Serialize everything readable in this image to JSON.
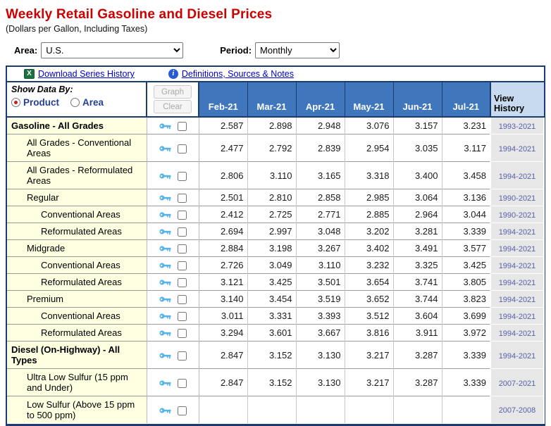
{
  "page": {
    "title": "Weekly Retail Gasoline and Diesel Prices",
    "subtitle": "(Dollars per Gallon, Including Taxes)"
  },
  "controls": {
    "area_label": "Area:",
    "area_value": "U.S.",
    "period_label": "Period:",
    "period_value": "Monthly"
  },
  "toolbar": {
    "download_label": "Download Series History",
    "definitions_label": "Definitions, Sources & Notes",
    "excel_icon_glyph": "X",
    "info_icon_glyph": "i"
  },
  "table": {
    "show_data_by": "Show Data By:",
    "radio_product_label": "Product",
    "radio_area_label": "Area",
    "graph_button_label": "Graph",
    "clear_button_label": "Clear",
    "columns": [
      "Feb-21",
      "Mar-21",
      "Apr-21",
      "May-21",
      "Jun-21",
      "Jul-21"
    ],
    "view_history_label": "View History",
    "rows": [
      {
        "label": "Gasoline - All Grades",
        "indent": 0,
        "bold": true,
        "values": [
          "2.587",
          "2.898",
          "2.948",
          "3.076",
          "3.157",
          "3.231"
        ],
        "history": "1993-2021"
      },
      {
        "label": "All Grades - Conventional Areas",
        "indent": 1,
        "bold": false,
        "values": [
          "2.477",
          "2.792",
          "2.839",
          "2.954",
          "3.035",
          "3.117"
        ],
        "history": "1994-2021"
      },
      {
        "label": "All Grades - Reformulated Areas",
        "indent": 1,
        "bold": false,
        "values": [
          "2.806",
          "3.110",
          "3.165",
          "3.318",
          "3.400",
          "3.458"
        ],
        "history": "1994-2021"
      },
      {
        "label": "Regular",
        "indent": 1,
        "bold": false,
        "values": [
          "2.501",
          "2.810",
          "2.858",
          "2.985",
          "3.064",
          "3.136"
        ],
        "history": "1990-2021"
      },
      {
        "label": "Conventional Areas",
        "indent": 2,
        "bold": false,
        "values": [
          "2.412",
          "2.725",
          "2.771",
          "2.885",
          "2.964",
          "3.044"
        ],
        "history": "1990-2021"
      },
      {
        "label": "Reformulated Areas",
        "indent": 2,
        "bold": false,
        "values": [
          "2.694",
          "2.997",
          "3.048",
          "3.202",
          "3.281",
          "3.339"
        ],
        "history": "1994-2021"
      },
      {
        "label": "Midgrade",
        "indent": 1,
        "bold": false,
        "values": [
          "2.884",
          "3.198",
          "3.267",
          "3.402",
          "3.491",
          "3.577"
        ],
        "history": "1994-2021"
      },
      {
        "label": "Conventional Areas",
        "indent": 2,
        "bold": false,
        "values": [
          "2.726",
          "3.049",
          "3.110",
          "3.232",
          "3.325",
          "3.425"
        ],
        "history": "1994-2021"
      },
      {
        "label": "Reformulated Areas",
        "indent": 2,
        "bold": false,
        "values": [
          "3.121",
          "3.425",
          "3.501",
          "3.654",
          "3.741",
          "3.805"
        ],
        "history": "1994-2021"
      },
      {
        "label": "Premium",
        "indent": 1,
        "bold": false,
        "values": [
          "3.140",
          "3.454",
          "3.519",
          "3.652",
          "3.744",
          "3.823"
        ],
        "history": "1994-2021"
      },
      {
        "label": "Conventional Areas",
        "indent": 2,
        "bold": false,
        "values": [
          "3.011",
          "3.331",
          "3.393",
          "3.512",
          "3.604",
          "3.699"
        ],
        "history": "1994-2021"
      },
      {
        "label": "Reformulated Areas",
        "indent": 2,
        "bold": false,
        "values": [
          "3.294",
          "3.601",
          "3.667",
          "3.816",
          "3.911",
          "3.972"
        ],
        "history": "1994-2021"
      },
      {
        "label": "Diesel (On-Highway) - All Types",
        "indent": 0,
        "bold": true,
        "values": [
          "2.847",
          "3.152",
          "3.130",
          "3.217",
          "3.287",
          "3.339"
        ],
        "history": "1994-2021"
      },
      {
        "label": "Ultra Low Sulfur (15 ppm and Under)",
        "indent": 1,
        "bold": false,
        "values": [
          "2.847",
          "3.152",
          "3.130",
          "3.217",
          "3.287",
          "3.339"
        ],
        "history": "2007-2021"
      },
      {
        "label": "Low Sulfur (Above 15 ppm to 500 ppm)",
        "indent": 1,
        "bold": false,
        "values": [
          "",
          "",
          "",
          "",
          "",
          ""
        ],
        "history": "2007-2008"
      }
    ]
  },
  "colors": {
    "title_red": "#cc0000",
    "navy_border": "#1b3d6d",
    "month_header_blue": "#3f76bc",
    "view_history_header_bg": "#c8daf0",
    "history_cell_bg": "#e7e7e7",
    "history_link": "#5661a8",
    "toolbar_link_blue": "#0000cc",
    "product_cell_yellow": "#ffffe1",
    "key_icon_blue": "#56b5e6",
    "radio_label_blue": "#24409a",
    "radio_selected_red": "#c81e1e",
    "excel_icon_green": "#1d6f42",
    "info_icon_blue": "#2a5bd7"
  }
}
